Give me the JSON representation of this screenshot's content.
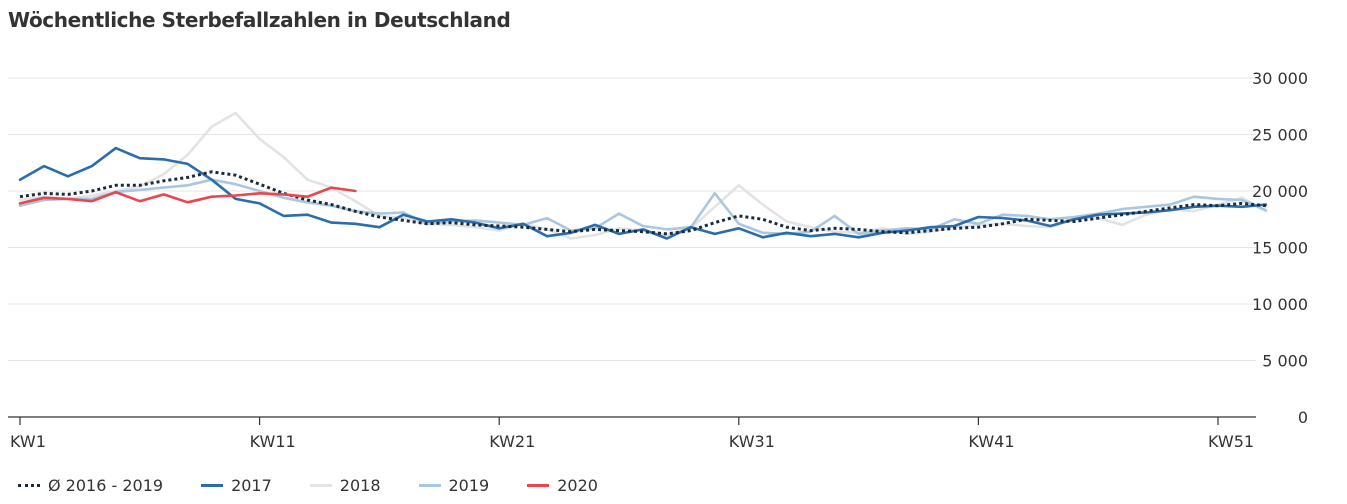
{
  "title": "Wöchentliche Sterbefallzahlen in Deutschland",
  "chart_data": {
    "type": "line",
    "title": "Wöchentliche Sterbefallzahlen in Deutschland",
    "xlabel": "",
    "ylabel": "",
    "ylim": [
      0,
      30000
    ],
    "xlim": [
      1,
      53
    ],
    "y_ticks": [
      0,
      5000,
      10000,
      15000,
      20000,
      25000,
      30000
    ],
    "y_tick_labels": [
      "0",
      "5 000",
      "10 000",
      "15 000",
      "20 000",
      "25 000",
      "30 000"
    ],
    "x_ticks": [
      1,
      11,
      21,
      31,
      41,
      51
    ],
    "x_tick_labels": [
      "KW1",
      "KW11",
      "KW21",
      "KW31",
      "KW41",
      "KW51"
    ],
    "grid": "horizontal",
    "y_axis_side": "right",
    "legend_position": "bottom-left",
    "series": [
      {
        "name": "Ø 2016 - 2019",
        "color": "#1a2b3c",
        "style": "dotted",
        "x": [
          1,
          2,
          3,
          4,
          5,
          6,
          7,
          8,
          9,
          10,
          11,
          12,
          13,
          14,
          15,
          16,
          17,
          18,
          19,
          20,
          21,
          22,
          23,
          24,
          25,
          26,
          27,
          28,
          29,
          30,
          31,
          32,
          33,
          34,
          35,
          36,
          37,
          38,
          39,
          40,
          41,
          42,
          43,
          44,
          45,
          46,
          47,
          48,
          49,
          50,
          51,
          52,
          53
        ],
        "values": [
          19500,
          19800,
          19700,
          20000,
          20500,
          20500,
          20900,
          21200,
          21700,
          21400,
          20600,
          19800,
          19200,
          18800,
          18200,
          17700,
          17400,
          17100,
          17200,
          17000,
          16900,
          16800,
          16600,
          16400,
          16600,
          16500,
          16400,
          16200,
          16500,
          17200,
          17800,
          17500,
          16800,
          16500,
          16700,
          16600,
          16400,
          16300,
          16500,
          16700,
          16800,
          17100,
          17500,
          17400,
          17300,
          17600,
          17900,
          18200,
          18500,
          18800,
          18700,
          18900,
          18700
        ]
      },
      {
        "name": "2017",
        "color": "#2b6cab",
        "style": "solid",
        "x": [
          1,
          2,
          3,
          4,
          5,
          6,
          7,
          8,
          9,
          10,
          11,
          12,
          13,
          14,
          15,
          16,
          17,
          18,
          19,
          20,
          21,
          22,
          23,
          24,
          25,
          26,
          27,
          28,
          29,
          30,
          31,
          32,
          33,
          34,
          35,
          36,
          37,
          38,
          39,
          40,
          41,
          42,
          43,
          44,
          45,
          46,
          47,
          48,
          49,
          50,
          51,
          52,
          53
        ],
        "values": [
          21000,
          22200,
          21300,
          22200,
          23800,
          22900,
          22800,
          22400,
          21000,
          19300,
          18900,
          17800,
          17900,
          17200,
          17100,
          16800,
          17900,
          17300,
          17500,
          17200,
          16700,
          17100,
          16000,
          16300,
          17000,
          16200,
          16600,
          15800,
          16800,
          16200,
          16700,
          15900,
          16300,
          16000,
          16200,
          15900,
          16300,
          16500,
          16800,
          16900,
          17700,
          17600,
          17400,
          16900,
          17500,
          17900,
          18000,
          18100,
          18300,
          18600,
          18700,
          18600,
          18800
        ]
      },
      {
        "name": "2018",
        "color": "#e3e3e3",
        "style": "solid",
        "x": [
          1,
          2,
          3,
          4,
          5,
          6,
          7,
          8,
          9,
          10,
          11,
          12,
          13,
          14,
          15,
          16,
          17,
          18,
          19,
          20,
          21,
          22,
          23,
          24,
          25,
          26,
          27,
          28,
          29,
          30,
          31,
          32,
          33,
          34,
          35,
          36,
          37,
          38,
          39,
          40,
          41,
          42,
          43,
          44,
          45,
          46,
          47,
          48,
          49,
          50,
          51,
          52,
          53
        ],
        "values": [
          19200,
          19500,
          19300,
          19600,
          20000,
          20400,
          21500,
          23200,
          25700,
          26900,
          24600,
          23000,
          21000,
          20300,
          19100,
          17800,
          17600,
          17100,
          17000,
          16800,
          16500,
          17100,
          16600,
          15800,
          16100,
          16700,
          16500,
          16100,
          16700,
          18600,
          20500,
          18800,
          17300,
          16800,
          16400,
          16300,
          16700,
          16200,
          16400,
          16800,
          17000,
          17100,
          16900,
          16800,
          17500,
          17600,
          17000,
          17900,
          18400,
          18200,
          18800,
          19400,
          18200
        ]
      },
      {
        "name": "2019",
        "color": "#a9c7e0",
        "style": "solid",
        "x": [
          1,
          2,
          3,
          4,
          5,
          6,
          7,
          8,
          9,
          10,
          11,
          12,
          13,
          14,
          15,
          16,
          17,
          18,
          19,
          20,
          21,
          22,
          23,
          24,
          25,
          26,
          27,
          28,
          29,
          30,
          31,
          32,
          33,
          34,
          35,
          36,
          37,
          38,
          39,
          40,
          41,
          42,
          43,
          44,
          45,
          46,
          47,
          48,
          49,
          50,
          51,
          52,
          53
        ],
        "values": [
          18700,
          19200,
          19300,
          19300,
          19900,
          20100,
          20300,
          20500,
          21000,
          20600,
          20000,
          19400,
          19000,
          18700,
          18200,
          18000,
          18100,
          17100,
          17300,
          17400,
          17200,
          17000,
          17600,
          16500,
          16700,
          18000,
          16900,
          16600,
          16800,
          19800,
          17100,
          16300,
          16200,
          16400,
          17800,
          16200,
          16500,
          16700,
          16600,
          17500,
          17100,
          17900,
          17800,
          17500,
          17700,
          18000,
          18400,
          18600,
          18800,
          19500,
          19300,
          19200,
          18300
        ]
      },
      {
        "name": "2020",
        "color": "#e8474f",
        "style": "solid",
        "x": [
          1,
          2,
          3,
          4,
          5,
          6,
          7,
          8,
          9,
          10,
          11,
          12,
          13,
          14,
          15
        ],
        "values": [
          18900,
          19400,
          19300,
          19100,
          19900,
          19100,
          19700,
          19000,
          19500,
          19600,
          19800,
          19700,
          19500,
          20300,
          20000
        ]
      }
    ]
  },
  "legend": [
    {
      "label": "Ø 2016 - 2019",
      "color": "#1a2b3c",
      "style": "dotted"
    },
    {
      "label": "2017",
      "color": "#2b6cab",
      "style": "solid"
    },
    {
      "label": "2018",
      "color": "#e3e3e3",
      "style": "solid"
    },
    {
      "label": "2019",
      "color": "#a9c7e0",
      "style": "solid"
    },
    {
      "label": "2020",
      "color": "#e8474f",
      "style": "solid"
    }
  ]
}
